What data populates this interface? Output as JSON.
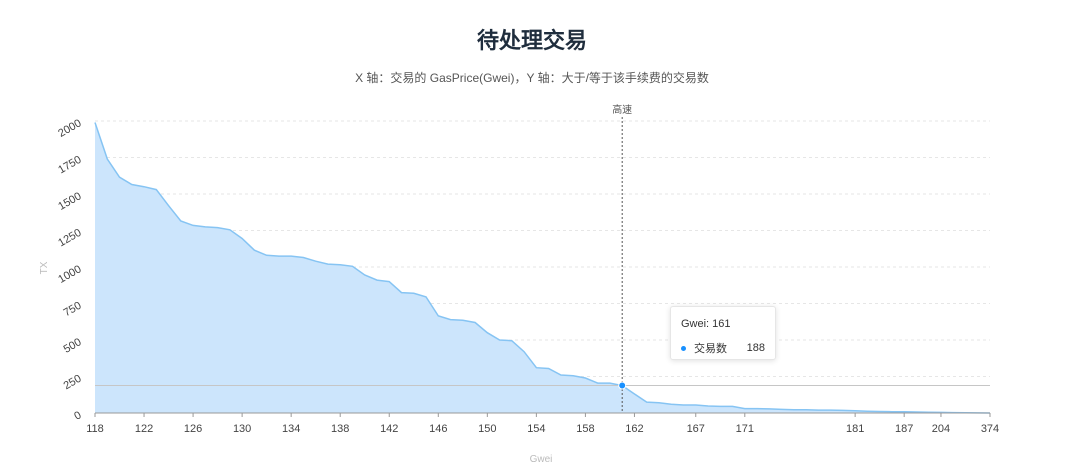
{
  "chart_data": {
    "type": "area",
    "title": "待处理交易",
    "subtitle": "X 轴：交易的 GasPrice(Gwei)，Y 轴：大于/等于该手续费的交易数",
    "xlabel": "Gwei",
    "ylabel": "TX",
    "ylim": [
      0,
      2000
    ],
    "yticks": [
      "0",
      "250",
      "500",
      "750",
      "1000",
      "1250",
      "1500",
      "1750",
      "2000"
    ],
    "x": [
      "118",
      "119",
      "120",
      "121",
      "122",
      "123",
      "124",
      "125",
      "126",
      "127",
      "128",
      "129",
      "130",
      "131",
      "132",
      "133",
      "134",
      "135",
      "136",
      "137",
      "138",
      "139",
      "140",
      "141",
      "142",
      "143",
      "144",
      "145",
      "146",
      "147",
      "148",
      "149",
      "150",
      "151",
      "152",
      "153",
      "154",
      "155",
      "156",
      "157",
      "158",
      "159",
      "160",
      "161",
      "162",
      "163",
      "164",
      "165",
      "166",
      "167",
      "168",
      "169",
      "170",
      "171",
      "172",
      "173",
      "174",
      "175",
      "176",
      "177",
      "178",
      "180",
      "181",
      "182",
      "183",
      "184",
      "187",
      "190",
      "200",
      "204",
      "210",
      "218",
      "250",
      "374"
    ],
    "xticks": [
      "118",
      "122",
      "126",
      "130",
      "134",
      "138",
      "142",
      "146",
      "150",
      "154",
      "158",
      "162",
      "167",
      "171",
      "181",
      "187",
      "204",
      "374"
    ],
    "values": [
      1990,
      1740,
      1615,
      1565,
      1550,
      1530,
      1420,
      1315,
      1285,
      1275,
      1270,
      1255,
      1195,
      1115,
      1080,
      1075,
      1075,
      1065,
      1040,
      1020,
      1015,
      1005,
      945,
      910,
      900,
      825,
      820,
      795,
      665,
      640,
      635,
      620,
      550,
      500,
      495,
      420,
      310,
      305,
      260,
      255,
      240,
      205,
      205,
      188,
      130,
      75,
      70,
      60,
      55,
      55,
      48,
      45,
      45,
      30,
      30,
      28,
      25,
      22,
      22,
      20,
      20,
      18,
      15,
      12,
      10,
      9,
      8,
      7,
      5,
      4,
      3,
      2,
      1,
      0
    ],
    "series": [
      {
        "name": "交易数"
      }
    ],
    "markline": {
      "label": "高速",
      "x": "161"
    },
    "tooltip": {
      "title": "Gwei: 161",
      "series": "交易数",
      "value": "188",
      "x": "161"
    },
    "grid": true,
    "colors": {
      "line": "#86c4f3",
      "area": "#cce5fc",
      "marker": "#1890ff",
      "grid": "#e6e6e6"
    }
  }
}
